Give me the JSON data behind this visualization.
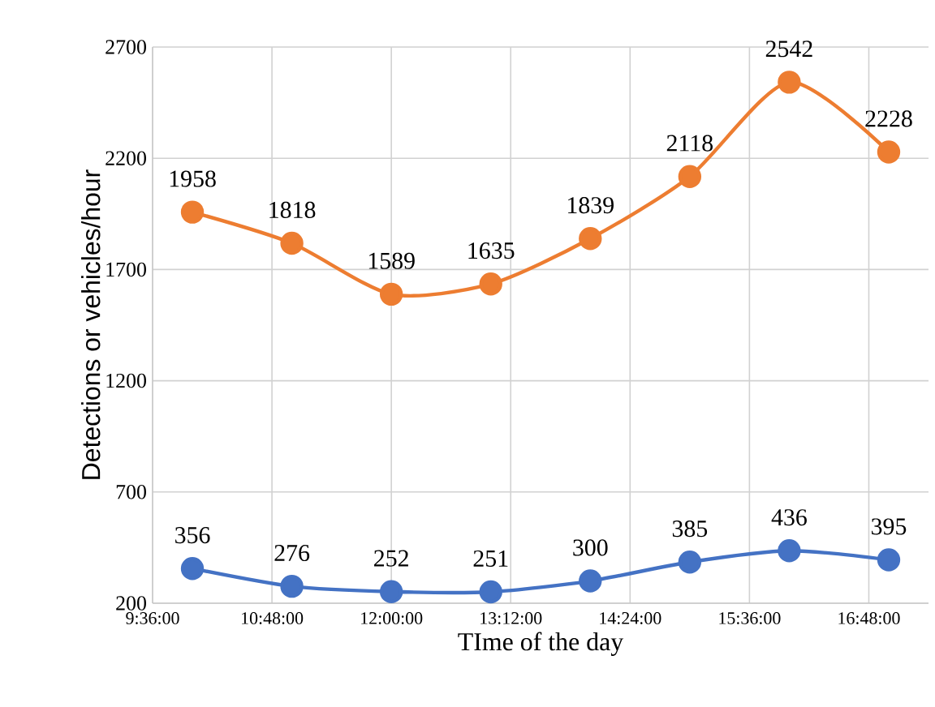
{
  "chart_data": {
    "type": "line",
    "xlabel": "TIme of the day",
    "ylabel": "Detections or vehicles/hour",
    "x": [
      10,
      11,
      12,
      13,
      14,
      15,
      16,
      17
    ],
    "series": [
      {
        "color": "#ed7d31",
        "values": [
          1958,
          1818,
          1589,
          1635,
          1839,
          2118,
          2542,
          2228
        ]
      },
      {
        "color": "#4472c4",
        "values": [
          356,
          276,
          252,
          251,
          300,
          385,
          436,
          395
        ]
      }
    ],
    "xlim": [
      9.6,
      17.4
    ],
    "xticks": [
      {
        "value": 9.6,
        "label": "9:36:00"
      },
      {
        "value": 10.8,
        "label": "10:48:00"
      },
      {
        "value": 12,
        "label": "12:00:00"
      },
      {
        "value": 13.2,
        "label": "13:12:00"
      },
      {
        "value": 14.4,
        "label": "14:24:00"
      },
      {
        "value": 15.6,
        "label": "15:36:00"
      },
      {
        "value": 16.8,
        "label": "16:48:00"
      }
    ],
    "ylim": [
      200,
      2700
    ],
    "yticks": [
      200,
      700,
      1200,
      1700,
      2200,
      2700
    ],
    "grid": true,
    "marker": "circle",
    "line_style": "solid",
    "data_labels": true
  }
}
